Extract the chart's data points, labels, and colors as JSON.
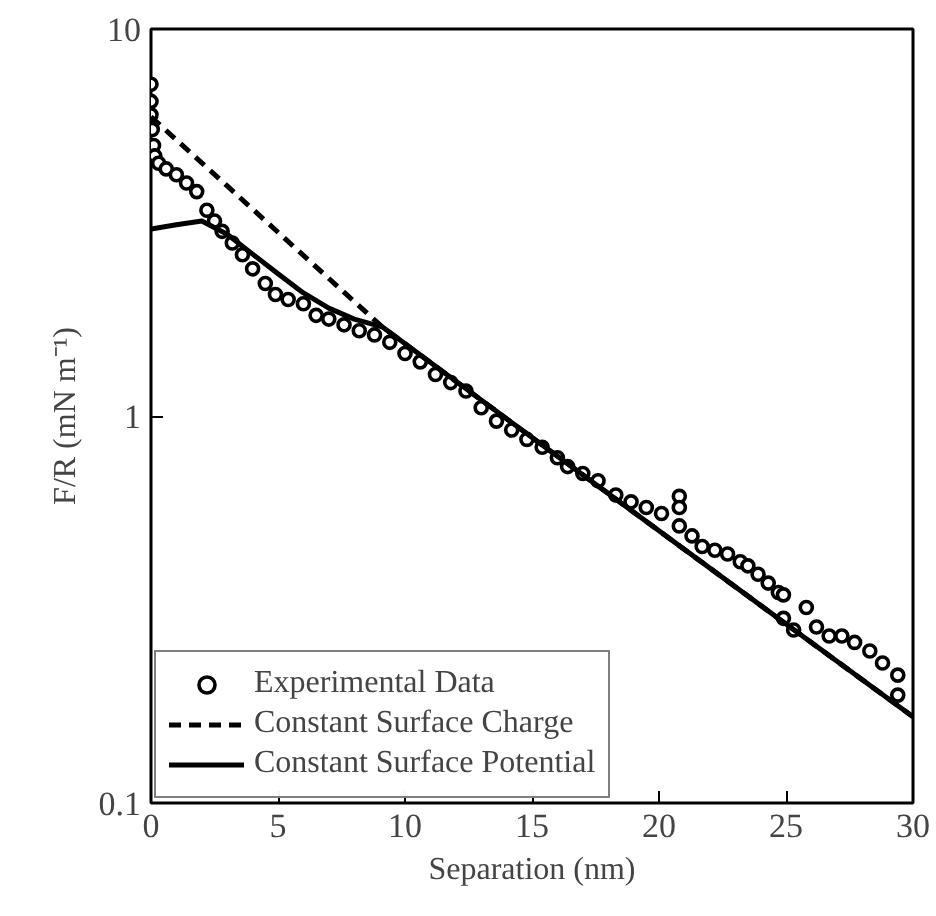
{
  "chart_data": {
    "type": "scatter",
    "xlabel": "Separation (nm)",
    "ylabel": "F/R (mN m⁻¹)",
    "xlim": [
      0,
      30
    ],
    "xticks": [
      0,
      5,
      10,
      15,
      20,
      25,
      30
    ],
    "ylim": [
      0.1,
      10
    ],
    "yticks": [
      0.1,
      1,
      10
    ],
    "log": "y",
    "grid": false,
    "legend": "bottom left",
    "series": [
      {
        "name": "Experimental Data",
        "marker": "circle",
        "color": "#000000",
        "x": [
          0,
          0,
          0,
          0.05,
          0.1,
          0.15,
          0.3,
          0.6,
          1.0,
          1.4,
          1.8,
          2.2,
          2.5,
          2.8,
          3.2,
          3.6,
          4.0,
          4.5,
          4.9,
          5.4,
          6.0,
          6.5,
          7.0,
          7.6,
          8.2,
          8.8,
          9.4,
          10.0,
          10.6,
          11.2,
          11.8,
          12.4,
          13.0,
          13.6,
          14.2,
          14.8,
          15.4,
          16.0,
          16.4,
          17.0,
          17.6,
          18.3,
          18.9,
          19.5,
          20.1,
          20.8,
          20.8,
          20.8,
          21.3,
          21.7,
          22.2,
          22.7,
          23.2,
          23.5,
          23.9,
          24.3,
          24.7,
          24.9,
          24.9,
          25.3,
          25.8,
          26.2,
          26.7,
          27.2,
          27.7,
          28.3,
          28.8,
          29.4,
          29.4
        ],
        "values": [
          7.2,
          6.5,
          6.0,
          5.5,
          5.0,
          4.7,
          4.5,
          4.35,
          4.2,
          4.0,
          3.8,
          3.4,
          3.19,
          3.0,
          2.8,
          2.61,
          2.4,
          2.2,
          2.06,
          2.0,
          1.95,
          1.82,
          1.78,
          1.72,
          1.66,
          1.62,
          1.55,
          1.45,
          1.38,
          1.28,
          1.22,
          1.16,
          1.05,
          0.97,
          0.92,
          0.87,
          0.83,
          0.78,
          0.74,
          0.71,
          0.68,
          0.625,
          0.6,
          0.58,
          0.56,
          0.62,
          0.58,
          0.52,
          0.49,
          0.46,
          0.45,
          0.44,
          0.42,
          0.41,
          0.39,
          0.37,
          0.35,
          0.345,
          0.3,
          0.28,
          0.32,
          0.285,
          0.27,
          0.27,
          0.26,
          0.247,
          0.23,
          0.214,
          0.19
        ]
      },
      {
        "name": "Constant Surface Charge",
        "type": "line",
        "line_style": "dashed",
        "color": "#000000",
        "x": [
          0,
          3,
          6,
          9.1,
          15,
          20,
          25,
          30
        ],
        "values": [
          5.93,
          3.93,
          2.6,
          1.7,
          0.88,
          0.505,
          0.29,
          0.167
        ]
      },
      {
        "name": "Constant Surface Potential",
        "type": "line",
        "line_style": "solid",
        "color": "#000000",
        "x": [
          0,
          1,
          2,
          3,
          4,
          5,
          6,
          7,
          8,
          9.1,
          15,
          20,
          25,
          30
        ],
        "values": [
          3.04,
          3.12,
          3.19,
          2.95,
          2.62,
          2.33,
          2.08,
          1.9,
          1.78,
          1.7,
          0.88,
          0.505,
          0.29,
          0.167
        ]
      }
    ]
  }
}
